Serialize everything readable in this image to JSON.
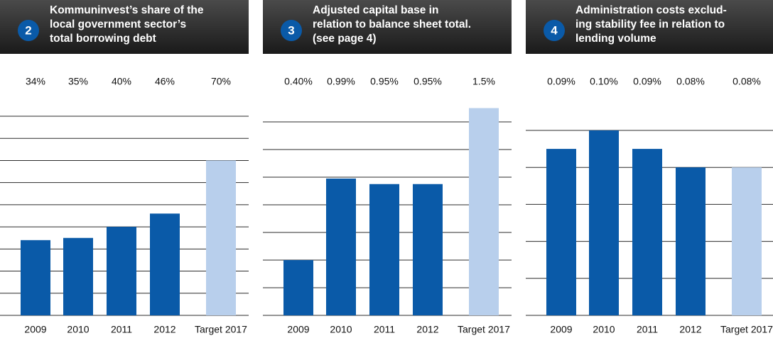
{
  "chart_data": [
    {
      "type": "bar",
      "number": "2",
      "title": [
        "Kommuninvest’s share of the",
        "local government sector’s",
        "total borrowing debt"
      ],
      "categories": [
        "2009",
        "2010",
        "2011",
        "2012",
        "Target 2017"
      ],
      "values": [
        34,
        35,
        40,
        46,
        70
      ],
      "value_labels": [
        "34%",
        "35%",
        "40%",
        "46%",
        "70%"
      ],
      "colors": [
        "#0a5aa8",
        "#0a5aa8",
        "#0a5aa8",
        "#0a5aa8",
        "#b8cfec"
      ],
      "ylim": [
        0,
        90
      ],
      "yticks": [
        0,
        10,
        20,
        30,
        40,
        50,
        60,
        70,
        80,
        90
      ],
      "grid": true
    },
    {
      "type": "bar",
      "number": "3",
      "title": [
        "Adjusted capital base in",
        "relation to balance sheet total.",
        "(see page 4)"
      ],
      "categories": [
        "2009",
        "2010",
        "2011",
        "2012",
        "Target 2017"
      ],
      "values": [
        0.4,
        0.99,
        0.95,
        0.95,
        1.5
      ],
      "value_labels": [
        "0.40%",
        "0.99%",
        "0.95%",
        "0.95%",
        "1.5%"
      ],
      "colors": [
        "#0a5aa8",
        "#0a5aa8",
        "#0a5aa8",
        "#0a5aa8",
        "#b8cfec"
      ],
      "ylim": [
        0,
        1.4
      ],
      "yticks": [
        0,
        0.2,
        0.4,
        0.6,
        0.8,
        1,
        1.2,
        1.4
      ],
      "grid": true
    },
    {
      "type": "bar",
      "number": "4",
      "title": [
        "Administration costs exclud-",
        "ing stability fee in relation to",
        "lending volume"
      ],
      "categories": [
        "2009",
        "2010",
        "2011",
        "2012",
        "Target 2017"
      ],
      "values": [
        0.09,
        0.1,
        0.09,
        0.08,
        0.08
      ],
      "value_labels": [
        "0.09%",
        "0.10%",
        "0.09%",
        "0.08%",
        "0.08%"
      ],
      "colors": [
        "#0a5aa8",
        "#0a5aa8",
        "#0a5aa8",
        "#0a5aa8",
        "#b8cfec"
      ],
      "ylim": [
        0,
        0.1
      ],
      "yticks": [
        0,
        0.02,
        0.04,
        0.06,
        0.08,
        0.1
      ],
      "grid": true
    }
  ]
}
